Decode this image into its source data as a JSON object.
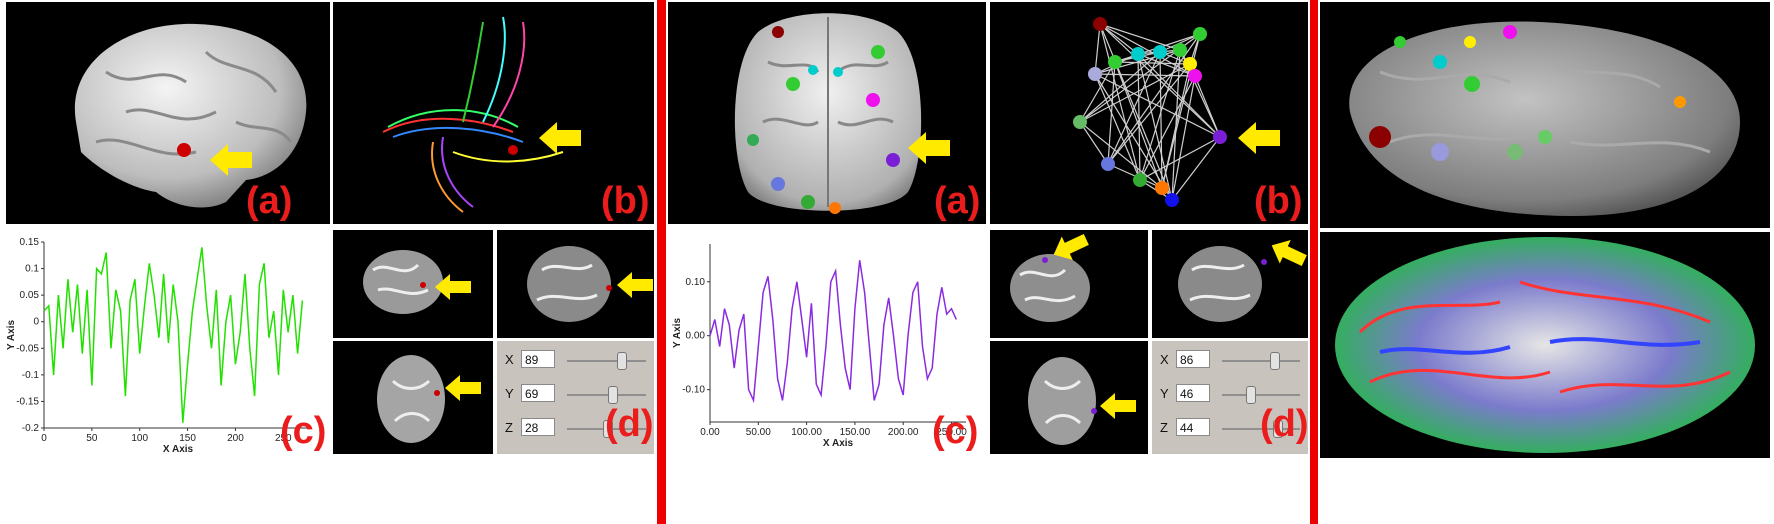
{
  "colors": {
    "divider": "#ee0000",
    "label": "#ea1c1c",
    "arrow": "#ffea00",
    "green_signal": "#22e000",
    "purple_signal": "#8a2be2"
  },
  "left": {
    "labels": {
      "a": "(a)",
      "b": "(b)",
      "c": "(c)",
      "d": "(d)"
    },
    "controls": [
      {
        "axis": "X",
        "value": "89",
        "level": 0.7
      },
      {
        "axis": "Y",
        "value": "69",
        "level": 0.58
      },
      {
        "axis": "Z",
        "value": "28",
        "level": 0.52
      }
    ]
  },
  "right": {
    "labels": {
      "a": "(a)",
      "b": "(b)",
      "c": "(c)",
      "d": "(d)"
    },
    "controls": [
      {
        "axis": "X",
        "value": "86",
        "level": 0.68
      },
      {
        "axis": "Y",
        "value": "46",
        "level": 0.37
      },
      {
        "axis": "Z",
        "value": "44",
        "level": 0.72
      }
    ]
  },
  "chart_data": [
    {
      "type": "line",
      "xlabel": "X Axis",
      "ylabel": "Y Axis",
      "xlim": [
        0,
        280
      ],
      "ylim": [
        -0.2,
        0.15
      ],
      "x_ticks": [
        "0",
        "50",
        "100",
        "150",
        "200",
        "250"
      ],
      "y_ticks": [
        "0.15",
        "0.1",
        "0.05",
        "0",
        "-0.05",
        "-0.1",
        "-0.15",
        "-0.2"
      ],
      "series": [
        {
          "x": [
            0,
            5,
            10,
            15,
            20,
            25,
            30,
            35,
            40,
            45,
            50,
            55,
            60,
            65,
            70,
            75,
            80,
            85,
            90,
            95,
            100,
            105,
            110,
            115,
            120,
            125,
            130,
            135,
            140,
            145,
            150,
            155,
            160,
            165,
            170,
            175,
            180,
            185,
            190,
            195,
            200,
            205,
            210,
            215,
            220,
            225,
            230,
            235,
            240,
            245,
            250,
            255,
            260,
            265,
            270
          ],
          "values": [
            0.02,
            0.03,
            -0.1,
            0.05,
            -0.05,
            0.08,
            -0.02,
            0.07,
            -0.06,
            0.06,
            -0.12,
            0.1,
            0.09,
            0.13,
            -0.05,
            0.06,
            0.02,
            -0.14,
            0.04,
            0.08,
            -0.06,
            0.03,
            0.11,
            0.05,
            -0.03,
            0.09,
            -0.04,
            0.07,
            0.0,
            -0.19,
            -0.08,
            0.02,
            0.08,
            0.14,
            0.03,
            -0.05,
            0.06,
            -0.12,
            0.0,
            0.05,
            -0.08,
            -0.02,
            0.09,
            -0.05,
            -0.14,
            0.07,
            0.11,
            -0.03,
            0.02,
            -0.1,
            0.06,
            -0.02,
            0.05,
            -0.06,
            0.04
          ]
        }
      ]
    },
    {
      "type": "line",
      "xlabel": "X Axis",
      "ylabel": "Y Axis",
      "xlim": [
        0,
        265
      ],
      "ylim": [
        -0.16,
        0.17
      ],
      "x_ticks": [
        "0.00",
        "50.00",
        "100.00",
        "150.00",
        "200.00",
        "250.00"
      ],
      "y_ticks": [
        "0.10",
        "0.00",
        "-0.10"
      ],
      "series": [
        {
          "x": [
            0,
            5,
            10,
            15,
            20,
            25,
            30,
            35,
            40,
            45,
            50,
            55,
            60,
            65,
            70,
            75,
            80,
            85,
            90,
            95,
            100,
            105,
            110,
            115,
            120,
            125,
            130,
            135,
            140,
            145,
            150,
            155,
            160,
            165,
            170,
            175,
            180,
            185,
            190,
            195,
            200,
            205,
            210,
            215,
            220,
            225,
            230,
            235,
            240,
            245,
            250,
            255
          ],
          "values": [
            0.0,
            0.03,
            -0.02,
            0.05,
            0.02,
            -0.06,
            0.01,
            0.04,
            -0.1,
            -0.12,
            -0.02,
            0.08,
            0.11,
            0.03,
            -0.08,
            -0.12,
            -0.05,
            0.05,
            0.1,
            0.03,
            -0.04,
            0.06,
            -0.09,
            -0.11,
            -0.02,
            0.1,
            0.12,
            0.02,
            -0.06,
            -0.1,
            0.05,
            0.14,
            0.08,
            -0.02,
            -0.12,
            -0.09,
            0.02,
            0.07,
            0.0,
            -0.08,
            -0.11,
            0.0,
            0.08,
            0.1,
            -0.02,
            -0.08,
            -0.06,
            0.04,
            0.09,
            0.04,
            0.05,
            0.03
          ]
        }
      ]
    }
  ]
}
